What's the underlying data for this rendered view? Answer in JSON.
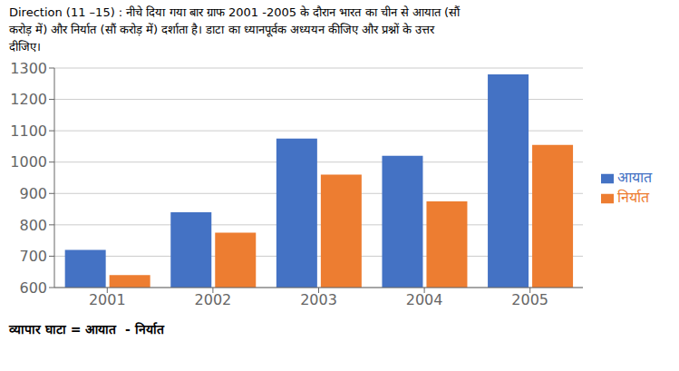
{
  "chart_data": {
    "type": "bar",
    "title": "Direction (11 –15) : नीचे दिया गया बार ग्राफ 2001 -2005 के दौरान भारत का चीन से आयात (सौं\nकरोड़ में) और निर्यात (सौं करोड़ में) दर्शाता है। डाटा का ध्यानपूर्वक अध्ययन कीजिए और प्रश्नों के उत्तर\nदीजिए।",
    "annotations": [
      "व्यापार घाटा = आयात  - निर्यात"
    ],
    "categories": [
      "2001",
      "2002",
      "2003",
      "2004",
      "2005"
    ],
    "series": [
      {
        "name": "आयात",
        "color": "#4472C4",
        "values": [
          720,
          840,
          1075,
          1020,
          1280
        ]
      },
      {
        "name": "निर्यात",
        "color": "#ED7D31",
        "values": [
          640,
          775,
          960,
          875,
          1055
        ]
      }
    ],
    "ylim": [
      600,
      1300
    ],
    "yticks": [
      600,
      700,
      800,
      900,
      1000,
      1100,
      1200,
      1300
    ],
    "grid": true,
    "legend": "right"
  }
}
